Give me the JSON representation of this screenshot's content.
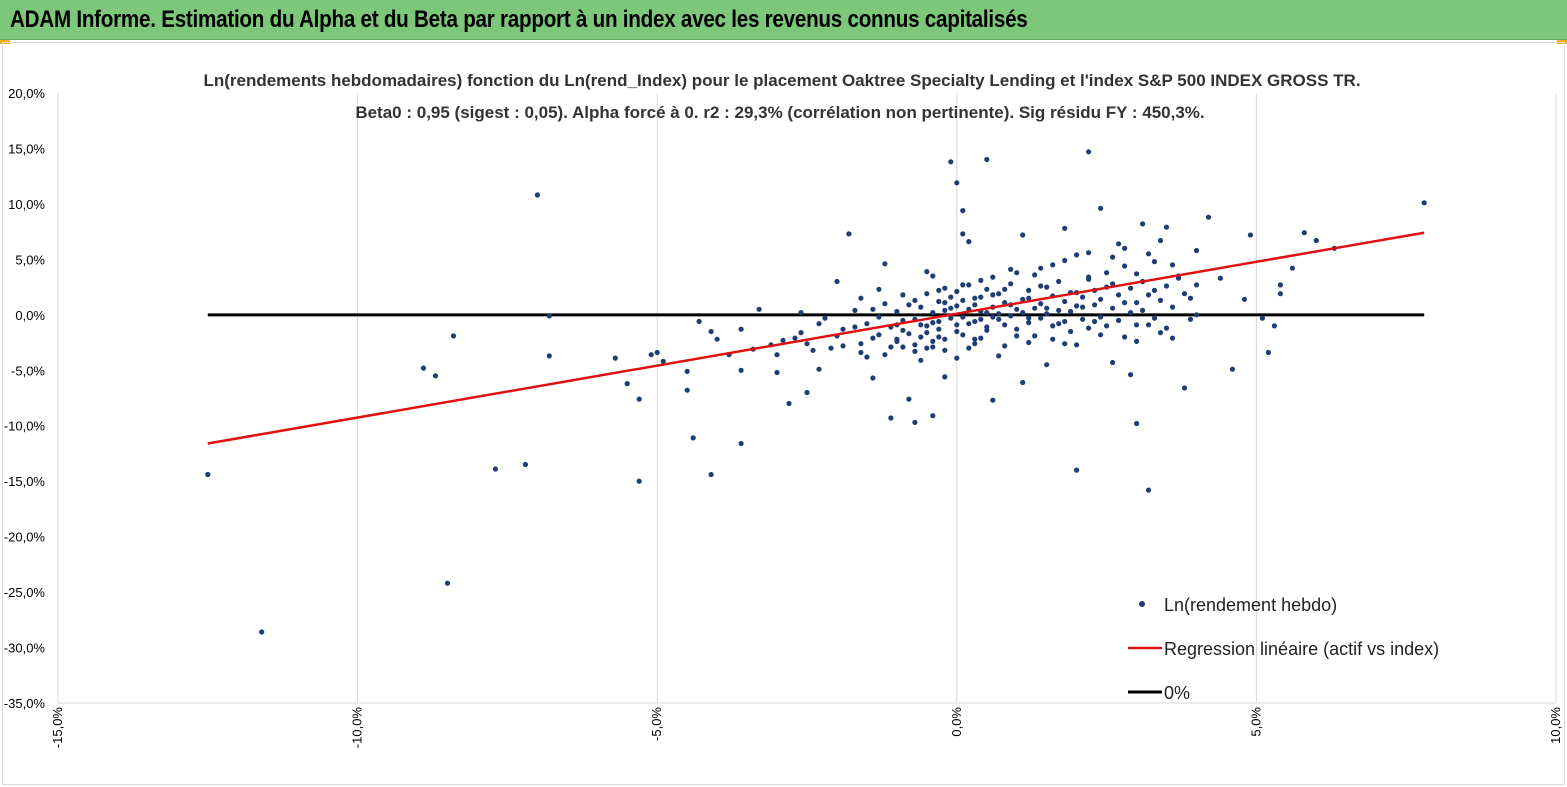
{
  "banner": {
    "title": "ADAM Informe. Estimation du Alpha et du Beta par rapport à un index avec les revenus connus capitalisés",
    "background": "#7dc77a"
  },
  "chart_data": {
    "type": "scatter",
    "title_line1": "Ln(rendements hebdomadaires) fonction du Ln(rend_Index) pour le placement Oaktree Specialty Lending et l'index S&P 500 INDEX GROSS TR.",
    "title_line2": "Beta0 : 0,95 (sigest : 0,05). Alpha forcé à 0. r2 : 29,3% (corrélation non pertinente). Sig résidu FY : 450,3%.",
    "xlim": [
      -15,
      10
    ],
    "ylim": [
      -35,
      20
    ],
    "x_ticks": [
      "-15,0%",
      "-10,0%",
      "-5,0%",
      "0,0%",
      "5,0%",
      "10,0%"
    ],
    "y_ticks": [
      "20,0%",
      "15,0%",
      "10,0%",
      "5,0%",
      "0,0%",
      "-5,0%",
      "-10,0%",
      "-15,0%",
      "-20,0%",
      "-25,0%",
      "-30,0%",
      "-35,0%"
    ],
    "grid": "vertical",
    "legend_position": "bottom-right",
    "colors": {
      "points": "#1f3d73",
      "regression": "#e01010",
      "zero_line": "#000000",
      "grid": "#d9d9d9"
    },
    "series": [
      {
        "name": "Ln(rendement hebdo)",
        "kind": "scatter",
        "points": [
          [
            -12.5,
            -14.4
          ],
          [
            -11.6,
            -28.6
          ],
          [
            -8.9,
            -4.8
          ],
          [
            -8.7,
            -5.5
          ],
          [
            -8.5,
            -24.2
          ],
          [
            -8.4,
            -1.9
          ],
          [
            -7.7,
            -13.9
          ],
          [
            -7.0,
            10.8
          ],
          [
            -7.2,
            -13.5
          ],
          [
            -6.8,
            -3.7
          ],
          [
            -6.8,
            -0.1
          ],
          [
            -5.7,
            -3.9
          ],
          [
            -5.5,
            -6.2
          ],
          [
            -5.3,
            -7.6
          ],
          [
            -5.3,
            -15.0
          ],
          [
            -5.1,
            -3.6
          ],
          [
            -5.0,
            -3.4
          ],
          [
            -4.9,
            -4.2
          ],
          [
            -4.5,
            -5.1
          ],
          [
            -4.5,
            -6.8
          ],
          [
            -4.4,
            -11.1
          ],
          [
            -4.3,
            -0.6
          ],
          [
            -4.1,
            -14.4
          ],
          [
            -4.1,
            -1.5
          ],
          [
            -4.0,
            -2.2
          ],
          [
            -3.8,
            -3.6
          ],
          [
            -3.6,
            -1.3
          ],
          [
            -3.6,
            -11.6
          ],
          [
            -3.6,
            -5.0
          ],
          [
            -3.4,
            -3.1
          ],
          [
            -3.3,
            0.5
          ],
          [
            -3.1,
            -2.7
          ],
          [
            -3.0,
            -5.2
          ],
          [
            -3.0,
            -3.6
          ],
          [
            -2.9,
            -2.3
          ],
          [
            -2.8,
            -8.0
          ],
          [
            -2.7,
            -2.1
          ],
          [
            -2.6,
            0.2
          ],
          [
            -2.5,
            -7.0
          ],
          [
            -2.5,
            -2.6
          ],
          [
            -2.4,
            -3.2
          ],
          [
            -2.3,
            -4.9
          ],
          [
            -2.2,
            -0.3
          ],
          [
            -2.1,
            -3.0
          ],
          [
            -2.0,
            3.0
          ],
          [
            -1.9,
            -1.3
          ],
          [
            -1.8,
            7.3
          ],
          [
            -1.7,
            0.4
          ],
          [
            -1.6,
            -2.6
          ],
          [
            -1.5,
            -3.8
          ],
          [
            -1.4,
            -5.7
          ],
          [
            -1.3,
            -1.8
          ],
          [
            -1.2,
            4.6
          ],
          [
            -1.1,
            -2.9
          ],
          [
            -1.1,
            -9.3
          ],
          [
            -1.0,
            -2.2
          ],
          [
            -0.9,
            1.8
          ],
          [
            -0.9,
            -1.4
          ],
          [
            -0.8,
            -7.6
          ],
          [
            -0.7,
            -2.7
          ],
          [
            -0.7,
            -9.7
          ],
          [
            -0.6,
            -4.1
          ],
          [
            -0.6,
            -2.0
          ],
          [
            -0.5,
            3.9
          ],
          [
            -0.5,
            -1.0
          ],
          [
            -0.4,
            3.5
          ],
          [
            -0.4,
            -9.1
          ],
          [
            -0.4,
            -2.4
          ],
          [
            -0.3,
            2.2
          ],
          [
            -0.3,
            -0.6
          ],
          [
            -0.2,
            1.1
          ],
          [
            -0.2,
            -3.2
          ],
          [
            -0.2,
            -5.6
          ],
          [
            -0.1,
            13.8
          ],
          [
            -0.1,
            0.6
          ],
          [
            0.0,
            11.9
          ],
          [
            0.0,
            -1.5
          ],
          [
            0.0,
            -3.9
          ],
          [
            0.1,
            7.3
          ],
          [
            0.1,
            9.4
          ],
          [
            0.1,
            2.7
          ],
          [
            0.2,
            -0.8
          ],
          [
            0.2,
            6.6
          ],
          [
            0.3,
            1.5
          ],
          [
            0.3,
            -2.2
          ],
          [
            0.4,
            0.3
          ],
          [
            0.4,
            3.1
          ],
          [
            0.5,
            -1.1
          ],
          [
            0.5,
            14.0
          ],
          [
            0.6,
            -7.7
          ],
          [
            0.6,
            1.8
          ],
          [
            0.7,
            -0.4
          ],
          [
            0.7,
            -3.7
          ],
          [
            0.8,
            2.3
          ],
          [
            0.9,
            4.1
          ],
          [
            0.9,
            0.9
          ],
          [
            1.0,
            -1.9
          ],
          [
            1.1,
            7.2
          ],
          [
            1.1,
            -6.1
          ],
          [
            1.2,
            1.5
          ],
          [
            1.2,
            -0.3
          ],
          [
            1.3,
            3.6
          ],
          [
            1.4,
            2.6
          ],
          [
            1.5,
            -4.5
          ],
          [
            1.5,
            0.6
          ],
          [
            1.6,
            4.5
          ],
          [
            1.7,
            -0.8
          ],
          [
            1.8,
            7.8
          ],
          [
            1.8,
            -2.6
          ],
          [
            1.9,
            2.0
          ],
          [
            2.0,
            5.4
          ],
          [
            2.0,
            -14.0
          ],
          [
            2.1,
            0.7
          ],
          [
            2.2,
            14.7
          ],
          [
            2.2,
            3.2
          ],
          [
            2.3,
            -0.6
          ],
          [
            2.4,
            9.6
          ],
          [
            2.5,
            2.5
          ],
          [
            2.6,
            -4.3
          ],
          [
            2.7,
            6.4
          ],
          [
            2.8,
            1.1
          ],
          [
            2.9,
            -5.4
          ],
          [
            3.0,
            -9.8
          ],
          [
            3.0,
            3.7
          ],
          [
            3.1,
            8.2
          ],
          [
            3.2,
            -0.9
          ],
          [
            3.2,
            -15.8
          ],
          [
            3.3,
            2.2
          ],
          [
            3.4,
            6.7
          ],
          [
            3.5,
            7.9
          ],
          [
            3.6,
            -2.1
          ],
          [
            3.7,
            3.3
          ],
          [
            3.8,
            -6.6
          ],
          [
            3.9,
            1.5
          ],
          [
            4.0,
            5.8
          ],
          [
            4.0,
            0.0
          ],
          [
            4.2,
            8.8
          ],
          [
            4.4,
            3.3
          ],
          [
            4.6,
            -4.9
          ],
          [
            4.8,
            1.4
          ],
          [
            4.9,
            7.2
          ],
          [
            5.1,
            -0.3
          ],
          [
            5.2,
            -3.4
          ],
          [
            5.3,
            -1.0
          ],
          [
            5.4,
            2.7
          ],
          [
            5.4,
            1.9
          ],
          [
            5.6,
            4.2
          ],
          [
            5.8,
            7.4
          ],
          [
            6.0,
            6.7
          ],
          [
            6.3,
            6.0
          ],
          [
            7.8,
            10.1
          ],
          [
            -1.5,
            -0.8
          ],
          [
            -1.4,
            0.5
          ],
          [
            -1.3,
            -0.2
          ],
          [
            -1.2,
            1.0
          ],
          [
            -1.1,
            -1.1
          ],
          [
            -1.0,
            0.3
          ],
          [
            -0.9,
            -0.5
          ],
          [
            -0.8,
            0.9
          ],
          [
            -0.8,
            -1.7
          ],
          [
            -0.7,
            1.3
          ],
          [
            -0.6,
            -0.9
          ],
          [
            -0.6,
            0.7
          ],
          [
            -0.5,
            -1.6
          ],
          [
            -0.5,
            1.9
          ],
          [
            -0.4,
            0.2
          ],
          [
            -0.4,
            -0.7
          ],
          [
            -0.3,
            1.2
          ],
          [
            -0.3,
            -1.3
          ],
          [
            -0.2,
            0.4
          ],
          [
            -0.2,
            2.4
          ],
          [
            -0.1,
            -0.3
          ],
          [
            -0.1,
            1.6
          ],
          [
            0.0,
            -0.9
          ],
          [
            0.0,
            0.8
          ],
          [
            0.0,
            2.1
          ],
          [
            0.1,
            -0.2
          ],
          [
            0.1,
            1.3
          ],
          [
            0.1,
            -1.8
          ],
          [
            0.2,
            0.5
          ],
          [
            0.2,
            2.7
          ],
          [
            0.3,
            -0.6
          ],
          [
            0.3,
            0.9
          ],
          [
            0.3,
            -2.6
          ],
          [
            0.4,
            1.6
          ],
          [
            0.4,
            -0.4
          ],
          [
            0.5,
            0.2
          ],
          [
            0.5,
            2.3
          ],
          [
            0.5,
            -1.4
          ],
          [
            0.6,
            0.7
          ],
          [
            0.6,
            -0.2
          ],
          [
            0.7,
            1.9
          ],
          [
            0.7,
            0.1
          ],
          [
            0.8,
            -0.9
          ],
          [
            0.8,
            1.1
          ],
          [
            0.9,
            -0.1
          ],
          [
            0.9,
            2.8
          ],
          [
            1.0,
            0.5
          ],
          [
            1.0,
            -1.3
          ],
          [
            1.1,
            1.4
          ],
          [
            1.1,
            0.2
          ],
          [
            1.2,
            -0.7
          ],
          [
            1.2,
            2.2
          ],
          [
            1.3,
            0.6
          ],
          [
            1.3,
            -1.9
          ],
          [
            1.4,
            1.0
          ],
          [
            1.4,
            -0.3
          ],
          [
            1.5,
            2.5
          ],
          [
            1.5,
            0.1
          ],
          [
            1.6,
            -1.0
          ],
          [
            1.6,
            1.7
          ],
          [
            1.7,
            0.4
          ],
          [
            1.7,
            3.0
          ],
          [
            1.8,
            -0.6
          ],
          [
            1.8,
            1.2
          ],
          [
            1.9,
            0.3
          ],
          [
            1.9,
            -1.5
          ],
          [
            2.0,
            2.0
          ],
          [
            2.0,
            0.8
          ],
          [
            2.1,
            -0.4
          ],
          [
            2.1,
            1.6
          ],
          [
            2.2,
            3.4
          ],
          [
            2.2,
            -1.2
          ],
          [
            2.3,
            0.9
          ],
          [
            2.3,
            2.2
          ],
          [
            2.4,
            -0.2
          ],
          [
            2.4,
            1.4
          ],
          [
            2.5,
            3.8
          ],
          [
            2.5,
            -1.0
          ],
          [
            2.6,
            0.6
          ],
          [
            2.6,
            2.8
          ],
          [
            2.7,
            -0.5
          ],
          [
            2.7,
            1.8
          ],
          [
            2.8,
            4.4
          ],
          [
            2.8,
            -2.0
          ],
          [
            2.9,
            0.2
          ],
          [
            2.9,
            2.4
          ],
          [
            3.0,
            1.1
          ],
          [
            3.0,
            -0.9
          ],
          [
            3.1,
            3.0
          ],
          [
            3.1,
            0.4
          ],
          [
            3.2,
            1.8
          ],
          [
            3.3,
            -0.3
          ],
          [
            3.3,
            4.8
          ],
          [
            3.4,
            1.3
          ],
          [
            3.5,
            2.6
          ],
          [
            3.5,
            -1.2
          ],
          [
            3.6,
            0.7
          ],
          [
            3.7,
            3.5
          ],
          [
            3.8,
            1.9
          ],
          [
            3.9,
            -0.4
          ],
          [
            4.0,
            2.7
          ],
          [
            -1.6,
            1.5
          ],
          [
            -1.3,
            2.3
          ],
          [
            -1.0,
            -2.4
          ],
          [
            -0.7,
            -3.3
          ],
          [
            -0.4,
            -2.9
          ],
          [
            -0.2,
            -2.2
          ],
          [
            0.2,
            -3.0
          ],
          [
            0.4,
            -2.1
          ],
          [
            0.6,
            3.4
          ],
          [
            0.8,
            -2.8
          ],
          [
            1.0,
            3.8
          ],
          [
            1.2,
            -2.5
          ],
          [
            1.4,
            4.2
          ],
          [
            1.6,
            -2.2
          ],
          [
            1.8,
            4.9
          ],
          [
            2.0,
            -2.7
          ],
          [
            2.2,
            5.6
          ],
          [
            2.4,
            -1.8
          ],
          [
            2.6,
            5.2
          ],
          [
            2.8,
            6.0
          ],
          [
            3.0,
            -2.4
          ],
          [
            3.2,
            5.5
          ],
          [
            3.4,
            -1.6
          ],
          [
            3.6,
            4.5
          ],
          [
            -2.6,
            -1.6
          ],
          [
            -2.3,
            -0.8
          ],
          [
            -2.0,
            -1.9
          ],
          [
            -1.9,
            -2.8
          ],
          [
            -1.7,
            -1.1
          ],
          [
            -1.6,
            -3.4
          ],
          [
            -1.4,
            -2.1
          ],
          [
            -1.2,
            -3.6
          ],
          [
            -1.0,
            -0.9
          ],
          [
            -0.9,
            -2.9
          ],
          [
            -0.7,
            -0.4
          ],
          [
            -0.5,
            -3.0
          ],
          [
            -0.3,
            -2.0
          ]
        ]
      },
      {
        "name": "Regression linéaire (actif vs index)",
        "kind": "line",
        "points": [
          [
            -12.5,
            -11.6
          ],
          [
            7.8,
            7.4
          ]
        ]
      },
      {
        "name": "0%",
        "kind": "line",
        "points": [
          [
            -12.5,
            0
          ],
          [
            7.8,
            0
          ]
        ]
      }
    ]
  }
}
